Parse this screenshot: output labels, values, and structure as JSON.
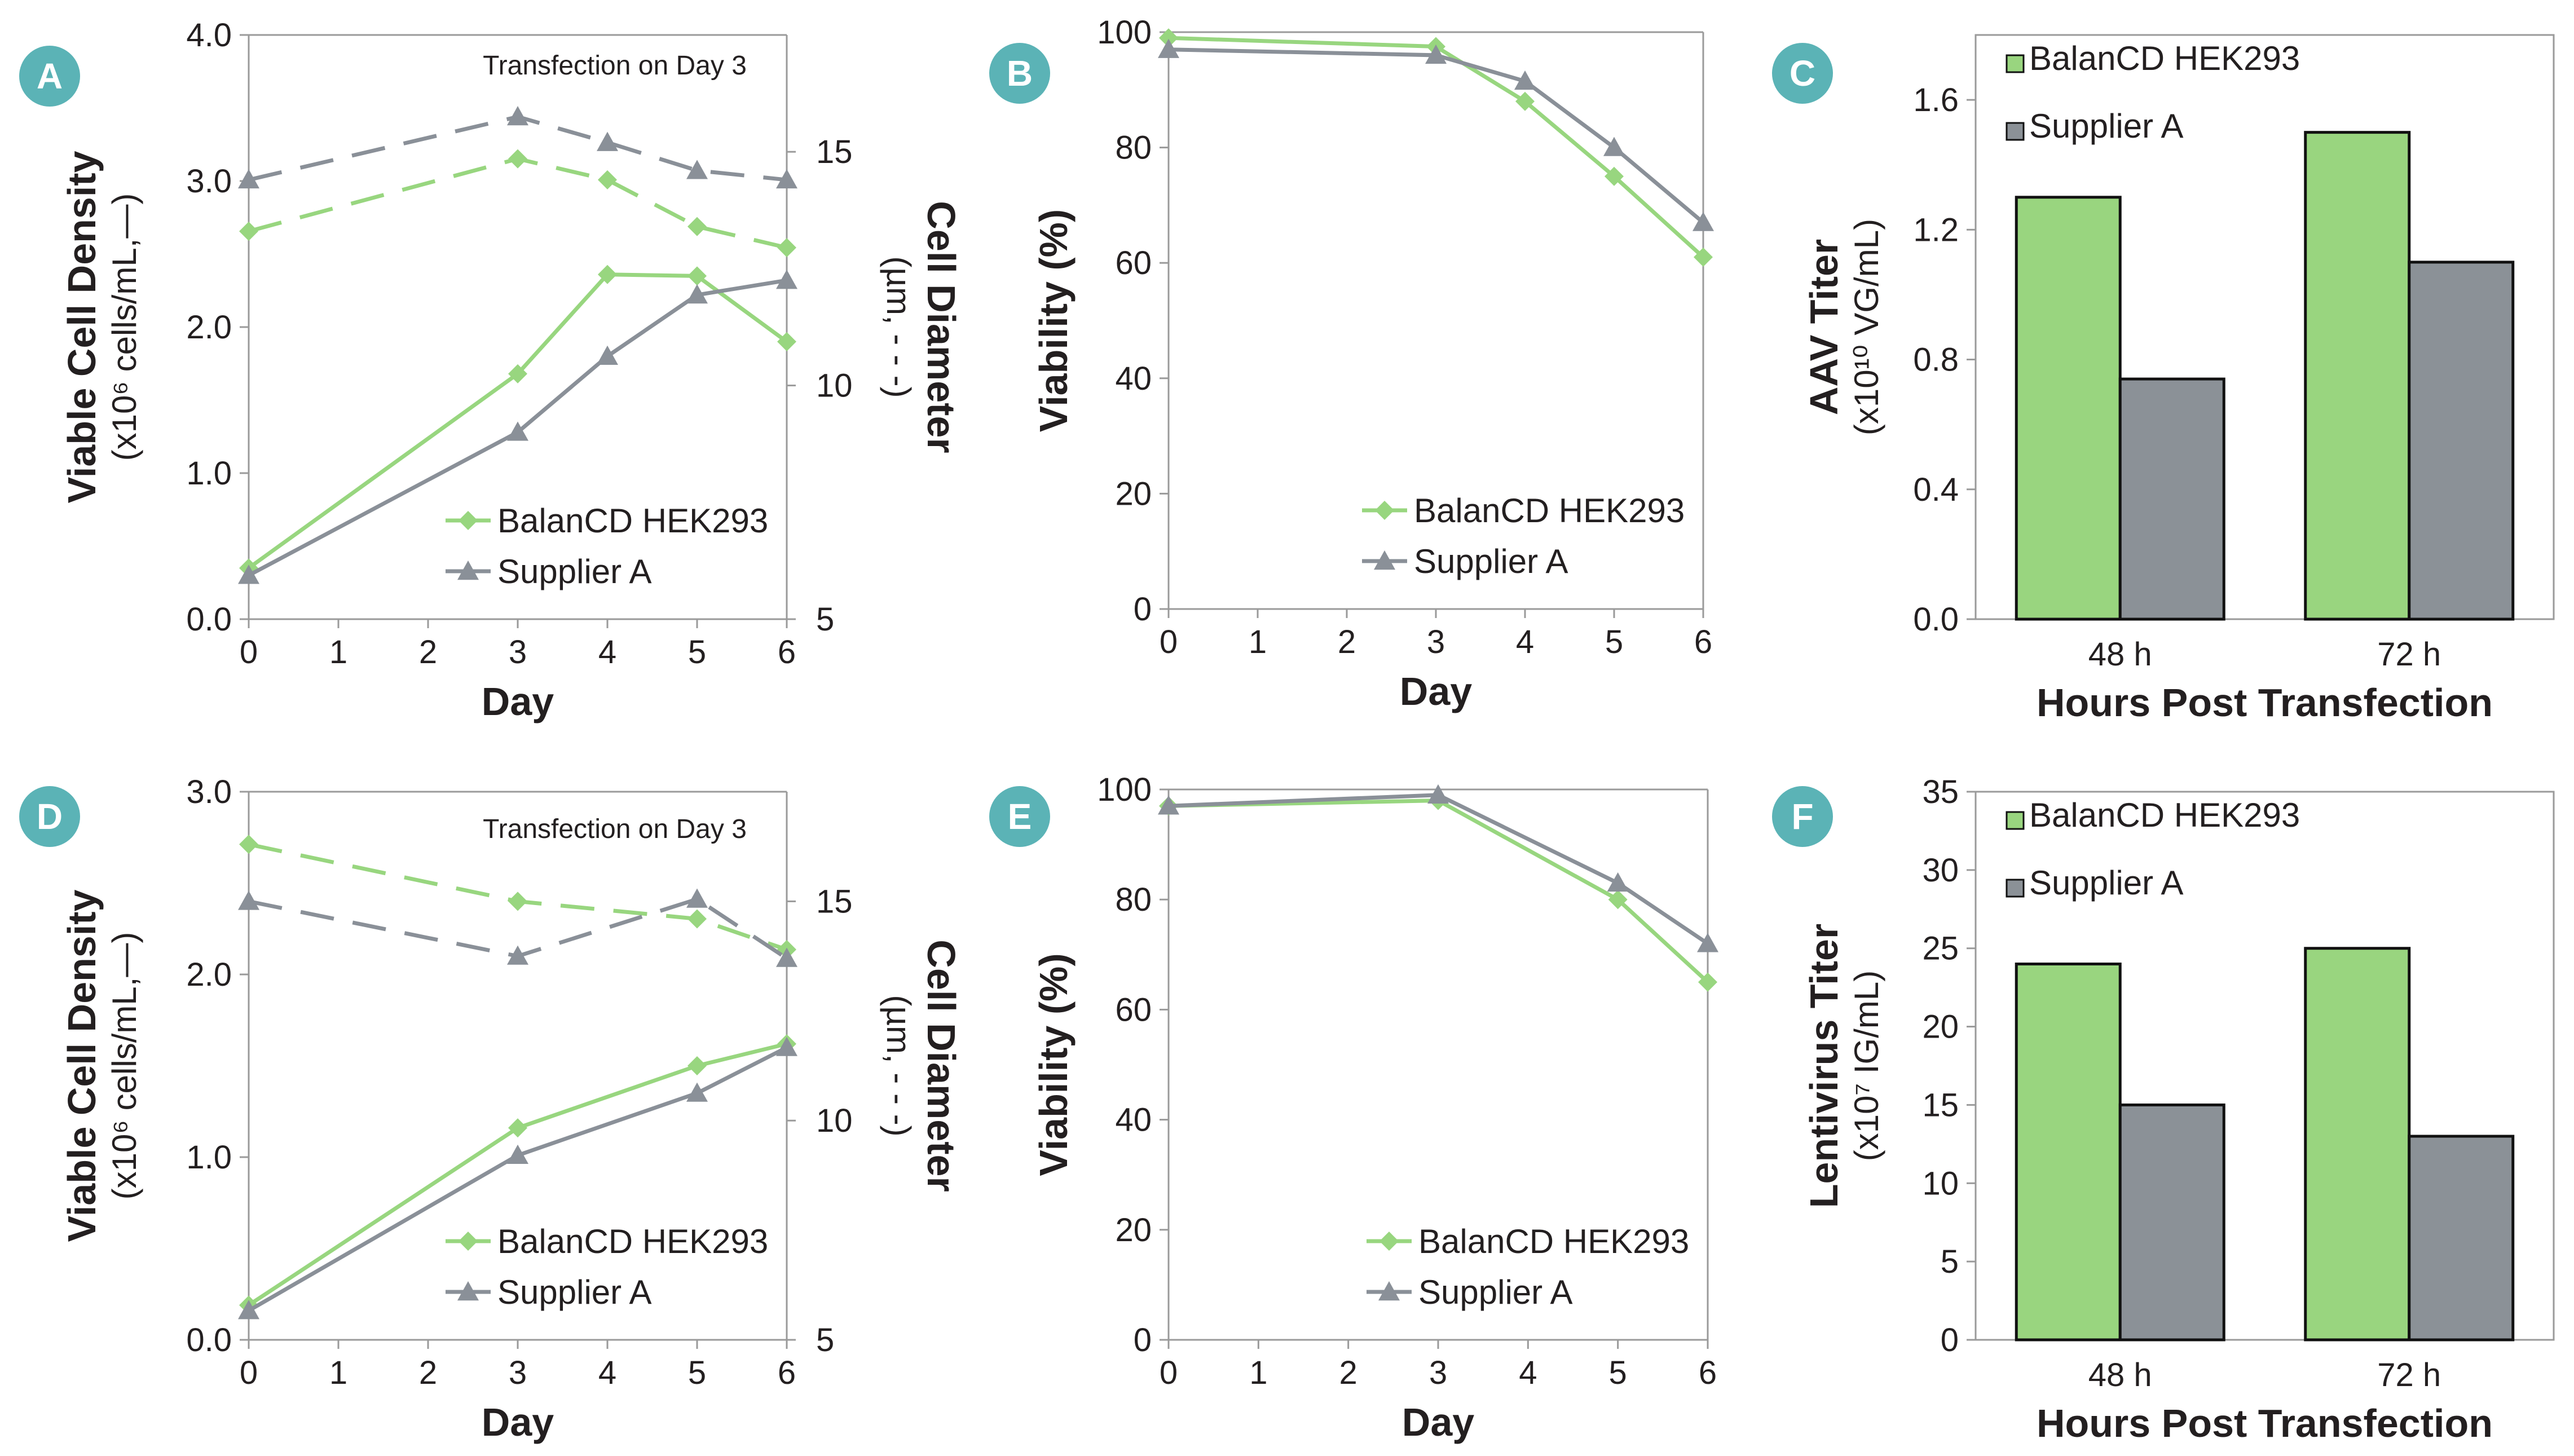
{
  "colors": {
    "balan": "#98d67f",
    "supplier": "#8a9098",
    "bar_balan": "#99d57f",
    "bar_supplier": "#8b9197",
    "badge": "#5bb3b6",
    "axis": "#999999",
    "text": "#231f20"
  },
  "chart_data": [
    {
      "panel": "A",
      "type": "line",
      "xlabel": "Day",
      "x_ticks": [
        "0",
        "1",
        "2",
        "3",
        "4",
        "5",
        "6"
      ],
      "xlim": [
        0,
        6
      ],
      "ylabel": "Viable Cell Density",
      "ylabel_sub": "(x10⁶ cells/mL,—)",
      "ylim": [
        0,
        4
      ],
      "y_ticks": [
        "0.0",
        "1.0",
        "2.0",
        "3.0",
        "4.0"
      ],
      "y2label": "Cell Diameter",
      "y2label_sub": "(µm, - - -)",
      "y2lim": [
        5,
        17.5
      ],
      "y2_ticks": [
        "5",
        "10",
        "15"
      ],
      "annotation": "Transfection on Day 3",
      "legend_position": "bottom-right",
      "series": [
        {
          "name": "BalanCD HEK293",
          "axis": "left",
          "style": "solid",
          "marker": "diamond",
          "x": [
            0,
            3,
            4,
            5,
            6
          ],
          "y": [
            0.35,
            1.68,
            2.36,
            2.35,
            1.9
          ]
        },
        {
          "name": "Supplier A",
          "axis": "left",
          "style": "solid",
          "marker": "triangle",
          "x": [
            0,
            3,
            4,
            5,
            6
          ],
          "y": [
            0.3,
            1.28,
            1.8,
            2.22,
            2.32
          ]
        },
        {
          "axis": "right",
          "style": "dashed",
          "marker": "diamond",
          "color": "balan",
          "x": [
            0,
            3,
            4,
            5,
            6
          ],
          "y": [
            13.3,
            14.85,
            14.4,
            13.4,
            12.95
          ]
        },
        {
          "axis": "right",
          "style": "dashed",
          "marker": "triangle",
          "color": "supplier",
          "x": [
            0,
            3,
            4,
            5,
            6
          ],
          "y": [
            14.4,
            15.75,
            15.2,
            14.6,
            14.4
          ]
        }
      ]
    },
    {
      "panel": "B",
      "type": "line",
      "xlabel": "Day",
      "x_ticks": [
        "0",
        "1",
        "2",
        "3",
        "4",
        "5",
        "6"
      ],
      "xlim": [
        0,
        6
      ],
      "ylabel": "Viability (%)",
      "ylim": [
        0,
        100
      ],
      "y_ticks": [
        "0",
        "20",
        "40",
        "60",
        "80",
        "100"
      ],
      "legend_position": "bottom-right",
      "series": [
        {
          "name": "BalanCD HEK293",
          "style": "solid",
          "marker": "diamond",
          "x": [
            0,
            3,
            4,
            5,
            6
          ],
          "y": [
            99,
            97.5,
            88,
            75,
            61
          ]
        },
        {
          "name": "Supplier A",
          "style": "solid",
          "marker": "triangle",
          "x": [
            0,
            3,
            4,
            5,
            6
          ],
          "y": [
            97,
            96,
            91.5,
            80,
            67
          ]
        }
      ]
    },
    {
      "panel": "C",
      "type": "bar",
      "categories": [
        "48 h",
        "72 h"
      ],
      "xlabel": "Hours Post Transfection",
      "ylabel": "AAV Titer",
      "ylabel_sub": "(x10¹⁰ VG/mL)",
      "ylim": [
        0,
        1.8
      ],
      "y_ticks": [
        "0.0",
        "0.4",
        "0.8",
        "1.2",
        "1.6"
      ],
      "legend_position": "top-left",
      "series": [
        {
          "name": "BalanCD HEK293",
          "values": [
            1.3,
            1.5
          ]
        },
        {
          "name": "Supplier A",
          "values": [
            0.74,
            1.1
          ]
        }
      ]
    },
    {
      "panel": "D",
      "type": "line",
      "xlabel": "Day",
      "x_ticks": [
        "0",
        "1",
        "2",
        "3",
        "4",
        "5",
        "6"
      ],
      "xlim": [
        0,
        6
      ],
      "ylabel": "Viable Cell Density",
      "ylabel_sub": "(x10⁶ cells/mL,—)",
      "ylim": [
        0,
        3
      ],
      "y_ticks": [
        "0.0",
        "1.0",
        "2.0",
        "3.0"
      ],
      "y2label": "Cell Diameter",
      "y2label_sub": "(µm, - - -)",
      "y2lim": [
        5,
        17.5
      ],
      "y2_ticks": [
        "5",
        "10",
        "15"
      ],
      "annotation": "Transfection on Day 3",
      "legend_position": "bottom-right",
      "series": [
        {
          "name": "BalanCD HEK293",
          "axis": "left",
          "style": "solid",
          "marker": "diamond",
          "x": [
            0,
            3,
            5,
            6
          ],
          "y": [
            0.19,
            1.16,
            1.5,
            1.62
          ]
        },
        {
          "name": "Supplier A",
          "axis": "left",
          "style": "solid",
          "marker": "triangle",
          "x": [
            0,
            3,
            5,
            6
          ],
          "y": [
            0.16,
            1.01,
            1.35,
            1.6
          ]
        },
        {
          "axis": "right",
          "style": "dashed",
          "marker": "diamond",
          "color": "balan",
          "x": [
            0,
            3,
            5,
            6
          ],
          "y": [
            16.3,
            15,
            14.6,
            13.9
          ]
        },
        {
          "axis": "right",
          "style": "dashed",
          "marker": "triangle",
          "color": "supplier",
          "x": [
            0,
            3,
            5,
            6
          ],
          "y": [
            15,
            13.75,
            15.05,
            13.7
          ]
        }
      ]
    },
    {
      "panel": "E",
      "type": "line",
      "xlabel": "Day",
      "x_ticks": [
        "0",
        "1",
        "2",
        "3",
        "4",
        "5",
        "6"
      ],
      "xlim": [
        0,
        6
      ],
      "ylabel": "Viability (%)",
      "ylim": [
        0,
        100
      ],
      "y_ticks": [
        "0",
        "20",
        "40",
        "60",
        "80",
        "100"
      ],
      "legend_position": "bottom-right",
      "series": [
        {
          "name": "BalanCD HEK293",
          "style": "solid",
          "marker": "diamond",
          "x": [
            0,
            3,
            5,
            6
          ],
          "y": [
            97,
            98,
            80,
            65
          ]
        },
        {
          "name": "Supplier A",
          "style": "solid",
          "marker": "triangle",
          "x": [
            0,
            3,
            5,
            6
          ],
          "y": [
            97,
            99,
            83,
            72
          ]
        }
      ]
    },
    {
      "panel": "F",
      "type": "bar",
      "categories": [
        "48 h",
        "72 h"
      ],
      "xlabel": "Hours Post Transfection",
      "ylabel": "Lentivirus Titer",
      "ylabel_sub": "(x10⁷ IG/mL)",
      "ylim": [
        0,
        35
      ],
      "y_ticks": [
        "0",
        "5",
        "10",
        "15",
        "20",
        "25",
        "30",
        "35"
      ],
      "legend_position": "top-left",
      "series": [
        {
          "name": "BalanCD HEK293",
          "values": [
            24,
            25
          ]
        },
        {
          "name": "Supplier A",
          "values": [
            15,
            13
          ]
        }
      ]
    }
  ]
}
